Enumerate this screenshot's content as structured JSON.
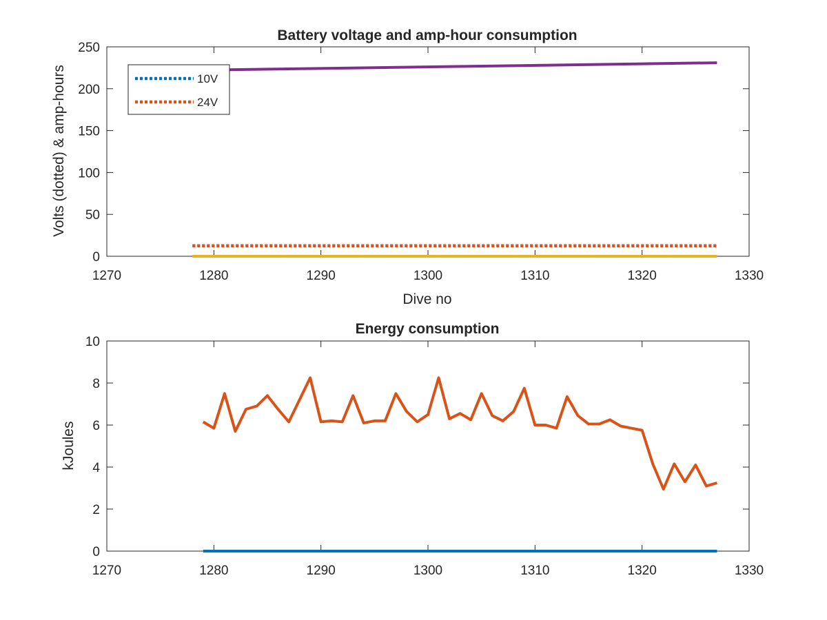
{
  "chart_data": [
    {
      "type": "line",
      "title": "Battery voltage and amp-hour consumption",
      "xlabel": "Dive no",
      "ylabel": "Volts (dotted) & amp-hours",
      "xlim": [
        1270,
        1330
      ],
      "ylim": [
        0,
        250
      ],
      "xticks": [
        "1270",
        "1280",
        "1290",
        "1300",
        "1310",
        "1320",
        "1330"
      ],
      "yticks": [
        "0",
        "50",
        "100",
        "150",
        "200",
        "250"
      ],
      "legend_position": "top-left",
      "grid": false,
      "series": [
        {
          "name": "10V",
          "style": "dotted",
          "color": "#0072BD",
          "x": [
            1278,
            1327
          ],
          "values": [
            12.5,
            12.5
          ]
        },
        {
          "name": "24V",
          "style": "dotted",
          "color": "#D95319",
          "x": [
            1278,
            1327
          ],
          "values": [
            12.5,
            12.5
          ]
        },
        {
          "style": "solid",
          "color": "#EDB120",
          "x": [
            1278,
            1327
          ],
          "values": [
            0,
            0
          ]
        },
        {
          "style": "solid",
          "color": "#7E2F8E",
          "x": [
            1278,
            1327
          ],
          "values": [
            222,
            231
          ]
        }
      ]
    },
    {
      "type": "line",
      "title": "Energy consumption",
      "xlabel": "",
      "ylabel": "kJoules",
      "xlim": [
        1270,
        1330
      ],
      "ylim": [
        0,
        10
      ],
      "xticks": [
        "1270",
        "1280",
        "1290",
        "1300",
        "1310",
        "1320",
        "1330"
      ],
      "yticks": [
        "0",
        "2",
        "4",
        "6",
        "8",
        "10"
      ],
      "grid": false,
      "series": [
        {
          "style": "solid",
          "color": "#D95319",
          "x": [
            1279,
            1280,
            1281,
            1282,
            1283,
            1284,
            1285,
            1286,
            1287,
            1288,
            1289,
            1290,
            1291,
            1292,
            1293,
            1294,
            1295,
            1296,
            1297,
            1298,
            1299,
            1300,
            1301,
            1302,
            1303,
            1304,
            1305,
            1306,
            1307,
            1308,
            1309,
            1310,
            1311,
            1312,
            1313,
            1314,
            1315,
            1316,
            1317,
            1318,
            1319,
            1320,
            1321,
            1322,
            1323,
            1324,
            1325,
            1326,
            1327
          ],
          "values": [
            6.15,
            5.85,
            7.5,
            5.7,
            6.75,
            6.9,
            7.4,
            6.75,
            6.15,
            7.2,
            8.25,
            6.15,
            6.2,
            6.15,
            7.4,
            6.1,
            6.2,
            6.2,
            7.5,
            6.65,
            6.15,
            6.5,
            8.25,
            6.3,
            6.55,
            6.25,
            7.5,
            6.45,
            6.2,
            6.65,
            7.75,
            6.0,
            6.0,
            5.85,
            7.35,
            6.45,
            6.05,
            6.05,
            6.25,
            5.95,
            5.85,
            5.75,
            4.15,
            2.95,
            4.15,
            3.3,
            4.1,
            3.1,
            3.25
          ]
        },
        {
          "style": "solid",
          "color": "#0072BD",
          "x": [
            1279,
            1327
          ],
          "values": [
            0,
            0
          ]
        }
      ]
    }
  ]
}
